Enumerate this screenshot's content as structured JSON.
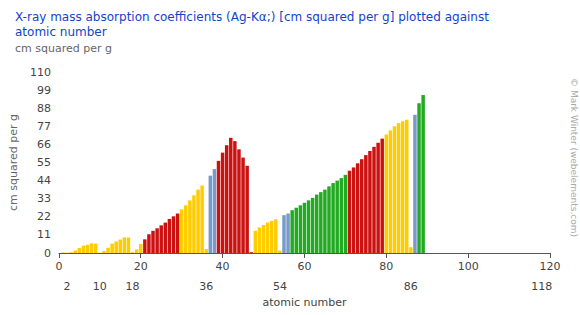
{
  "chart_data": {
    "type": "bar",
    "title": "X-ray mass absorption coefficients (Ag-Kα;) [cm squared per g] plotted against\natomic number",
    "subtitle": "cm squared per g",
    "ylabel": "cm squared per g",
    "x2label": "atomic number",
    "annotations": [
      {
        "text": "© Mark Winter (webelements.com)"
      }
    ],
    "x": [
      1,
      2,
      3,
      4,
      5,
      6,
      7,
      8,
      9,
      10,
      11,
      12,
      13,
      14,
      15,
      16,
      17,
      18,
      19,
      20,
      21,
      22,
      23,
      24,
      25,
      26,
      27,
      28,
      29,
      30,
      31,
      32,
      33,
      34,
      35,
      36,
      37,
      38,
      39,
      40,
      41,
      42,
      43,
      44,
      45,
      46,
      47,
      48,
      49,
      50,
      51,
      52,
      53,
      54,
      55,
      56,
      57,
      58,
      59,
      60,
      61,
      62,
      63,
      64,
      65,
      66,
      67,
      68,
      69,
      70,
      71,
      72,
      73,
      74,
      75,
      76,
      77,
      78,
      79,
      80,
      81,
      82,
      83,
      84,
      85,
      86,
      87,
      88,
      89
    ],
    "values": [
      0.37,
      0.19,
      0.47,
      1.5,
      3.0,
      4.5,
      5.0,
      5.9,
      5.7,
      0.18,
      1.2,
      3.2,
      5.7,
      7.0,
      8.2,
      9.5,
      9.4,
      0.5,
      2.2,
      5.5,
      8.3,
      11.4,
      13.5,
      15.0,
      16.8,
      18.5,
      20.7,
      22.3,
      24.0,
      26.5,
      29.0,
      32.0,
      35.0,
      38.5,
      41.0,
      2.4,
      47.0,
      51.0,
      56.0,
      61.0,
      65.5,
      70.0,
      68.0,
      63.0,
      58.0,
      53.0,
      0.5,
      13.5,
      15.5,
      17.0,
      18.5,
      19.5,
      20.5,
      1.5,
      23.0,
      24.0,
      26.0,
      27.5,
      29.0,
      30.5,
      32.0,
      33.5,
      35.5,
      37.0,
      38.5,
      40.5,
      42.5,
      44.0,
      45.5,
      47.5,
      50.0,
      52.0,
      54.5,
      57.0,
      59.5,
      62.0,
      64.5,
      67.0,
      69.5,
      72.0,
      74.5,
      77.0,
      79.0,
      80.0,
      81.0,
      3.5,
      84.0,
      91.0,
      96.0
    ],
    "colors": [
      "#ffcc00",
      "#ffcc00",
      "#ffcc00",
      "#ffcc00",
      "#ffcc00",
      "#ffcc00",
      "#ffcc00",
      "#ffcc00",
      "#ffcc00",
      "#ffcc00",
      "#ffcc00",
      "#ffcc00",
      "#ffcc00",
      "#ffcc00",
      "#ffcc00",
      "#ffcc00",
      "#ffcc00",
      "#ffcc00",
      "#ffcc00",
      "#ffcc00",
      "#cc1111",
      "#cc1111",
      "#cc1111",
      "#cc1111",
      "#cc1111",
      "#cc1111",
      "#cc1111",
      "#cc1111",
      "#cc1111",
      "#ffcc00",
      "#ffcc00",
      "#ffcc00",
      "#ffcc00",
      "#ffcc00",
      "#ffcc00",
      "#ffcc00",
      "#7799cc",
      "#7799cc",
      "#cc1111",
      "#cc1111",
      "#cc1111",
      "#cc1111",
      "#cc1111",
      "#cc1111",
      "#cc1111",
      "#cc1111",
      "#cc1111",
      "#ffcc00",
      "#ffcc00",
      "#ffcc00",
      "#ffcc00",
      "#ffcc00",
      "#ffcc00",
      "#ffcc00",
      "#7799cc",
      "#7799cc",
      "#22aa22",
      "#22aa22",
      "#22aa22",
      "#22aa22",
      "#22aa22",
      "#22aa22",
      "#22aa22",
      "#22aa22",
      "#22aa22",
      "#22aa22",
      "#22aa22",
      "#22aa22",
      "#22aa22",
      "#22aa22",
      "#cc1111",
      "#cc1111",
      "#cc1111",
      "#cc1111",
      "#cc1111",
      "#cc1111",
      "#cc1111",
      "#cc1111",
      "#cc1111",
      "#ffcc00",
      "#ffcc00",
      "#ffcc00",
      "#ffcc00",
      "#ffcc00",
      "#ffcc00",
      "#ffcc00",
      "#7799cc",
      "#22aa22",
      "#22aa22"
    ],
    "xlim": [
      0,
      120
    ],
    "xticks": [
      0,
      20,
      40,
      60,
      80,
      100,
      120
    ],
    "x2ticks": [
      2,
      10,
      18,
      36,
      54,
      86,
      118
    ],
    "ylim": [
      0,
      110
    ],
    "yticks": [
      0,
      11,
      22,
      33,
      44,
      55,
      66,
      77,
      88,
      99,
      110
    ],
    "grid": false
  }
}
